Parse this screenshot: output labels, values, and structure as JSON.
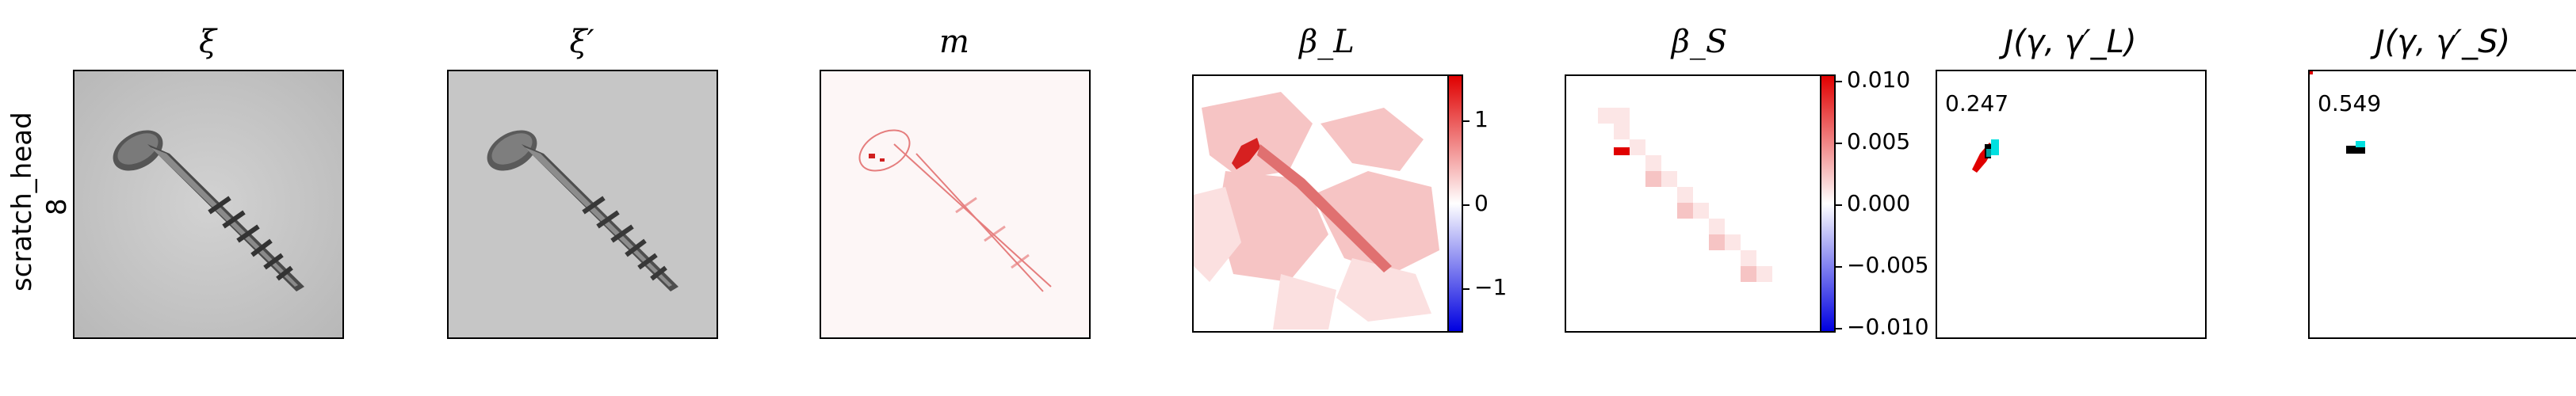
{
  "row_label": {
    "line1": "scratch_head",
    "line2": "8"
  },
  "titles": {
    "xi": "ξ",
    "xi_prime": "ξ′",
    "m": "m",
    "beta_L": "β_L",
    "beta_S": "β_S",
    "J_L": "J(γ, γ′_L)",
    "J_S": "J(γ, γ′_S)"
  },
  "colorbar_L": {
    "ticks": [
      "1",
      "0",
      "−1"
    ]
  },
  "colorbar_S": {
    "ticks": [
      "0.010",
      "0.005",
      "0.000",
      "−0.005",
      "−0.010"
    ]
  },
  "scores": {
    "J_L": "0.247",
    "J_S": "0.549"
  },
  "colors": {
    "red": "#e00000",
    "blue": "#0000e0",
    "cyan": "#00e0e0",
    "black": "#000000"
  }
}
